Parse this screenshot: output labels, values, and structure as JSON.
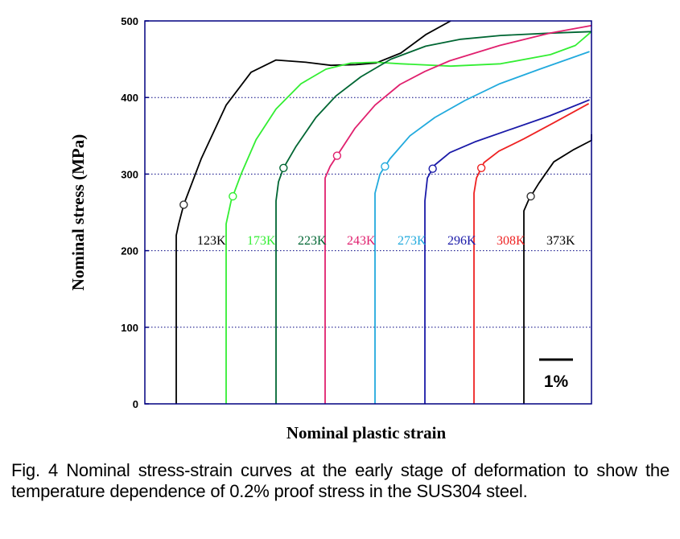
{
  "caption": "Fig. 4  Nominal stress-strain curves at the early stage of deformation to show the temperature dependence of 0.2% proof stress in the SUS304 steel.",
  "chart_data": {
    "type": "line",
    "title": "",
    "xlabel": "Nominal plastic strain",
    "ylabel": "Nominal stress (MPa)",
    "ylim": [
      0,
      500
    ],
    "yticks": [
      0,
      100,
      200,
      300,
      400,
      500
    ],
    "y_tick_labels": [
      "0",
      "100",
      "200",
      "300",
      "400",
      "500"
    ],
    "grid": "horizontal dotted",
    "scale_bar": "1%",
    "series": [
      {
        "name": "123K",
        "color": "#000000",
        "proof_stress": 260,
        "points": [
          [
            0,
            0
          ],
          [
            0,
            220
          ],
          [
            0.05,
            235
          ],
          [
            0.15,
            260
          ],
          [
            0.5,
            320
          ],
          [
            1,
            390
          ],
          [
            1.5,
            433
          ],
          [
            2,
            449
          ],
          [
            2.6,
            446
          ],
          [
            3.1,
            442
          ],
          [
            3.6,
            443
          ],
          [
            4,
            445
          ],
          [
            4.5,
            458
          ],
          [
            5,
            482
          ],
          [
            5.5,
            500
          ]
        ]
      },
      {
        "name": "173K",
        "color": "#33ee33",
        "proof_stress": 271,
        "points": [
          [
            0,
            0
          ],
          [
            0,
            235
          ],
          [
            0.1,
            265
          ],
          [
            0.3,
            300
          ],
          [
            0.6,
            345
          ],
          [
            1,
            385
          ],
          [
            1.5,
            418
          ],
          [
            2,
            437
          ],
          [
            2.5,
            445
          ],
          [
            3,
            446
          ],
          [
            3.5,
            444
          ],
          [
            4.5,
            441
          ],
          [
            5.5,
            444
          ],
          [
            6.5,
            456
          ],
          [
            7,
            468
          ],
          [
            7.4,
            486
          ]
        ]
      },
      {
        "name": "223K",
        "color": "#006633",
        "proof_stress": 308,
        "points": [
          [
            0,
            0
          ],
          [
            0,
            265
          ],
          [
            0.05,
            290
          ],
          [
            0.15,
            308
          ],
          [
            0.4,
            336
          ],
          [
            0.8,
            374
          ],
          [
            1.2,
            402
          ],
          [
            1.7,
            427
          ],
          [
            2.3,
            450
          ],
          [
            3,
            467
          ],
          [
            3.7,
            476
          ],
          [
            4.5,
            481
          ],
          [
            5.5,
            484
          ],
          [
            6.4,
            486
          ]
        ]
      },
      {
        "name": "243K",
        "color": "#e0206e",
        "proof_stress": 324,
        "points": [
          [
            0,
            0
          ],
          [
            0,
            295
          ],
          [
            0.1,
            310
          ],
          [
            0.3,
            330
          ],
          [
            0.6,
            360
          ],
          [
            1,
            390
          ],
          [
            1.5,
            417
          ],
          [
            2,
            434
          ],
          [
            2.5,
            448
          ],
          [
            3.5,
            468
          ],
          [
            4.5,
            484
          ],
          [
            5.4,
            494
          ]
        ]
      },
      {
        "name": "273K",
        "color": "#22aadd",
        "proof_stress": 310,
        "points": [
          [
            0,
            0
          ],
          [
            0,
            275
          ],
          [
            0.1,
            300
          ],
          [
            0.3,
            320
          ],
          [
            0.7,
            350
          ],
          [
            1.2,
            374
          ],
          [
            1.8,
            396
          ],
          [
            2.5,
            418
          ],
          [
            3.3,
            437
          ],
          [
            4.3,
            460
          ]
        ]
      },
      {
        "name": "296K",
        "color": "#1a1aa8",
        "proof_stress": 307,
        "points": [
          [
            0,
            0
          ],
          [
            0,
            265
          ],
          [
            0.05,
            295
          ],
          [
            0.2,
            312
          ],
          [
            0.5,
            328
          ],
          [
            1,
            342
          ],
          [
            1.7,
            358
          ],
          [
            2.5,
            376
          ],
          [
            3.3,
            397
          ]
        ]
      },
      {
        "name": "308K",
        "color": "#ee2222",
        "proof_stress": 308,
        "points": [
          [
            0,
            0
          ],
          [
            0,
            275
          ],
          [
            0.05,
            295
          ],
          [
            0.2,
            315
          ],
          [
            0.5,
            330
          ],
          [
            1,
            346
          ],
          [
            1.6,
            367
          ],
          [
            2.3,
            392
          ]
        ]
      },
      {
        "name": "373K",
        "color": "#000000",
        "proof_stress": 271,
        "points": [
          [
            0,
            0
          ],
          [
            0,
            252
          ],
          [
            0.1,
            267
          ],
          [
            0.3,
            288
          ],
          [
            0.6,
            316
          ],
          [
            1,
            332
          ],
          [
            1.4,
            344
          ],
          [
            1.8,
            352
          ]
        ]
      }
    ]
  }
}
